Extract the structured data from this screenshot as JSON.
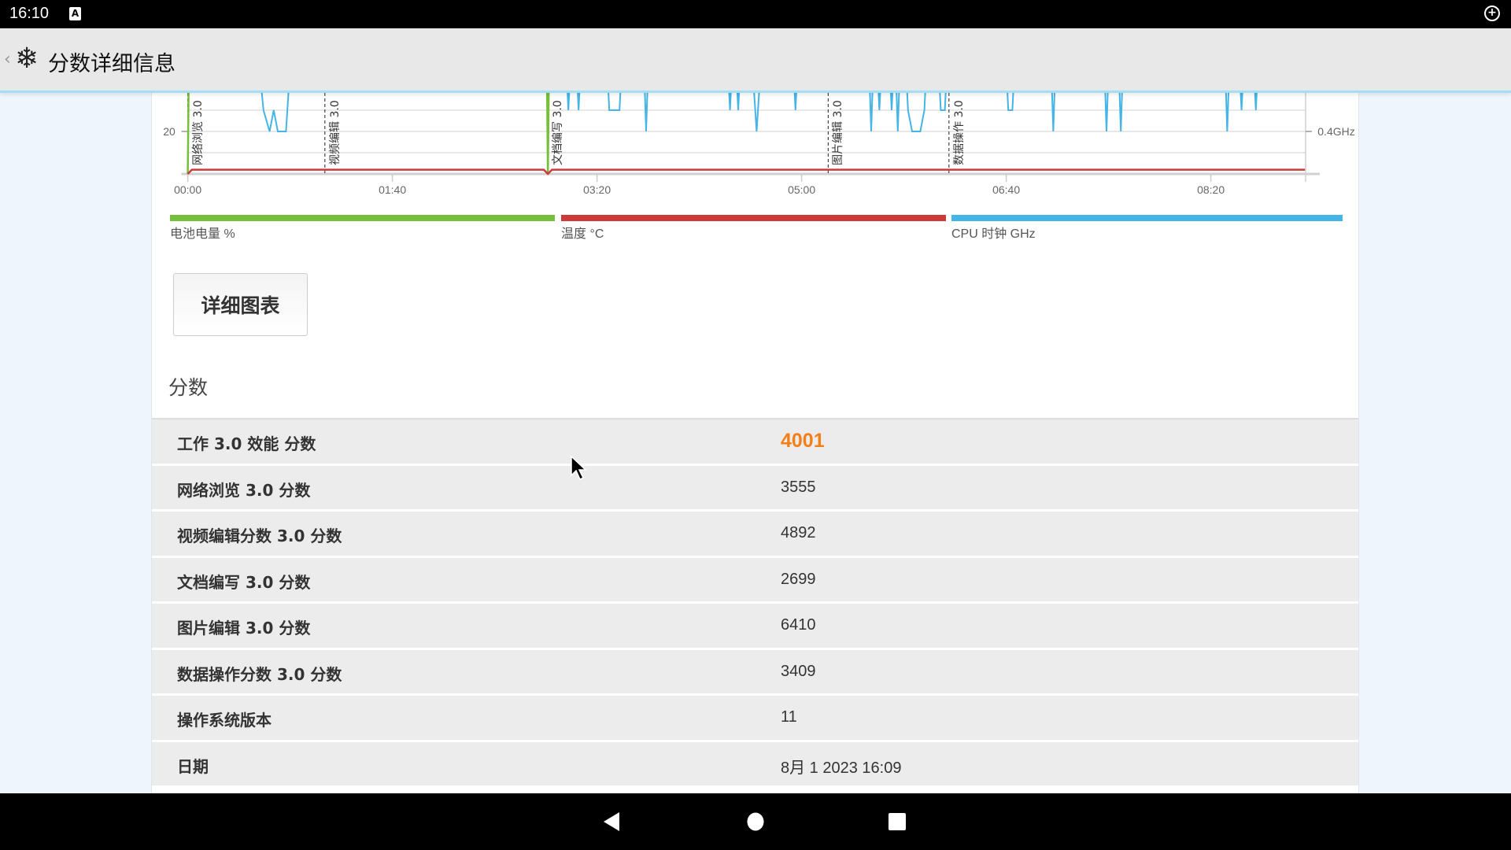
{
  "status_bar": {
    "time": "16:10",
    "notification_icon": "a-icon",
    "right_icon": "sync-icon"
  },
  "app_bar": {
    "title": "分数详细信息",
    "back_icon": "chevron-left-icon",
    "logo_icon": "snowflake-icon"
  },
  "chart_data": {
    "type": "line",
    "x_ticks": [
      "00:00",
      "01:40",
      "03:20",
      "05:00",
      "06:40",
      "08:20"
    ],
    "x_tick_seconds": [
      0,
      100,
      200,
      300,
      400,
      500
    ],
    "xlim_seconds": [
      0,
      546
    ],
    "left_axis": {
      "visible_ticks": [
        "20"
      ]
    },
    "right_axis": {
      "visible_ticks": [
        "0.4GHz"
      ]
    },
    "grid": true,
    "markers": [
      {
        "t": 0,
        "label": "网络浏览 3.0"
      },
      {
        "t": 67,
        "label": "视频编辑 3.0"
      },
      {
        "t": 176,
        "label": "文档编写 3.0"
      },
      {
        "t": 313,
        "label": "图片编辑 3.0"
      },
      {
        "t": 372,
        "label": "数据操作 3.0"
      }
    ],
    "series": [
      {
        "name": "电池电量 %",
        "color": "#76bf3b",
        "points": [
          [
            0,
            0
          ],
          [
            1,
            100
          ],
          [
            175,
            100
          ],
          [
            176,
            0
          ],
          [
            177,
            100
          ],
          [
            546,
            100
          ]
        ]
      },
      {
        "name": "温度 °C",
        "color": "#cc3a3a",
        "points": [
          [
            0,
            0
          ],
          [
            2,
            2
          ],
          [
            174,
            2
          ],
          [
            176,
            0
          ],
          [
            178,
            2
          ],
          [
            546,
            2
          ]
        ]
      },
      {
        "name": "CPU 时钟 GHz",
        "color": "#45b4e6",
        "points": [
          [
            0,
            0.7
          ],
          [
            35,
            0.7
          ],
          [
            37,
            0.5
          ],
          [
            40,
            0.4
          ],
          [
            42,
            0.5
          ],
          [
            44,
            0.4
          ],
          [
            48,
            0.4
          ],
          [
            50,
            0.7
          ],
          [
            185,
            0.7
          ],
          [
            186,
            0.5
          ],
          [
            187,
            0.7
          ],
          [
            190,
            0.7
          ],
          [
            191,
            0.5
          ],
          [
            192,
            0.7
          ],
          [
            205,
            0.7
          ],
          [
            206,
            0.5
          ],
          [
            211,
            0.5
          ],
          [
            212,
            0.7
          ],
          [
            223,
            0.7
          ],
          [
            224,
            0.4
          ],
          [
            225,
            0.7
          ],
          [
            264,
            0.7
          ],
          [
            265,
            0.5
          ],
          [
            266,
            0.7
          ],
          [
            268,
            0.7
          ],
          [
            269,
            0.5
          ],
          [
            270,
            0.7
          ],
          [
            276,
            0.7
          ],
          [
            278,
            0.4
          ],
          [
            280,
            0.7
          ],
          [
            296,
            0.7
          ],
          [
            297,
            0.5
          ],
          [
            298,
            0.7
          ],
          [
            333,
            0.7
          ],
          [
            334,
            0.4
          ],
          [
            335,
            0.7
          ],
          [
            337,
            0.7
          ],
          [
            338,
            0.5
          ],
          [
            339,
            0.7
          ],
          [
            343,
            0.7
          ],
          [
            344,
            0.5
          ],
          [
            345,
            0.7
          ],
          [
            346,
            0.7
          ],
          [
            347,
            0.4
          ],
          [
            348,
            0.7
          ],
          [
            351,
            0.7
          ],
          [
            352,
            0.5
          ],
          [
            354,
            0.4
          ],
          [
            358,
            0.4
          ],
          [
            360,
            0.5
          ],
          [
            361,
            0.7
          ],
          [
            367,
            0.7
          ],
          [
            368,
            0.5
          ],
          [
            370,
            0.5
          ],
          [
            371,
            0.7
          ],
          [
            400,
            0.7
          ],
          [
            401,
            0.5
          ],
          [
            403,
            0.5
          ],
          [
            404,
            0.7
          ],
          [
            422,
            0.7
          ],
          [
            423,
            0.4
          ],
          [
            424,
            0.7
          ],
          [
            448,
            0.7
          ],
          [
            449,
            0.4
          ],
          [
            450,
            0.7
          ],
          [
            455,
            0.7
          ],
          [
            456,
            0.4
          ],
          [
            457,
            0.7
          ],
          [
            507,
            0.7
          ],
          [
            508,
            0.4
          ],
          [
            509,
            0.7
          ],
          [
            514,
            0.7
          ],
          [
            515,
            0.5
          ],
          [
            516,
            0.7
          ],
          [
            521,
            0.7
          ],
          [
            522,
            0.5
          ],
          [
            523,
            0.7
          ],
          [
            546,
            0.7
          ]
        ]
      }
    ]
  },
  "detail_button": "详细图表",
  "scores": {
    "heading": "分数",
    "rows": [
      {
        "label": "工作 3.0 效能 分数",
        "value": "4001"
      },
      {
        "label": "网络浏览 3.0 分数",
        "value": "3555"
      },
      {
        "label": "视频编辑分数 3.0 分数",
        "value": "4892"
      },
      {
        "label": "文档编写 3.0 分数",
        "value": "2699"
      },
      {
        "label": "图片编辑 3.0 分数",
        "value": "6410"
      },
      {
        "label": "数据操作分数 3.0 分数",
        "value": "3409"
      },
      {
        "label": "操作系统版本",
        "value": "11"
      },
      {
        "label": "日期",
        "value": "8月 1 2023 16:09"
      }
    ]
  },
  "colors": {
    "accent": "#f57f17",
    "battery": "#76bf3b",
    "temperature": "#cc3a3a",
    "cpu": "#45b4e6"
  },
  "nav_bar": {
    "back": "back-icon",
    "home": "home-icon",
    "recents": "recents-icon"
  }
}
